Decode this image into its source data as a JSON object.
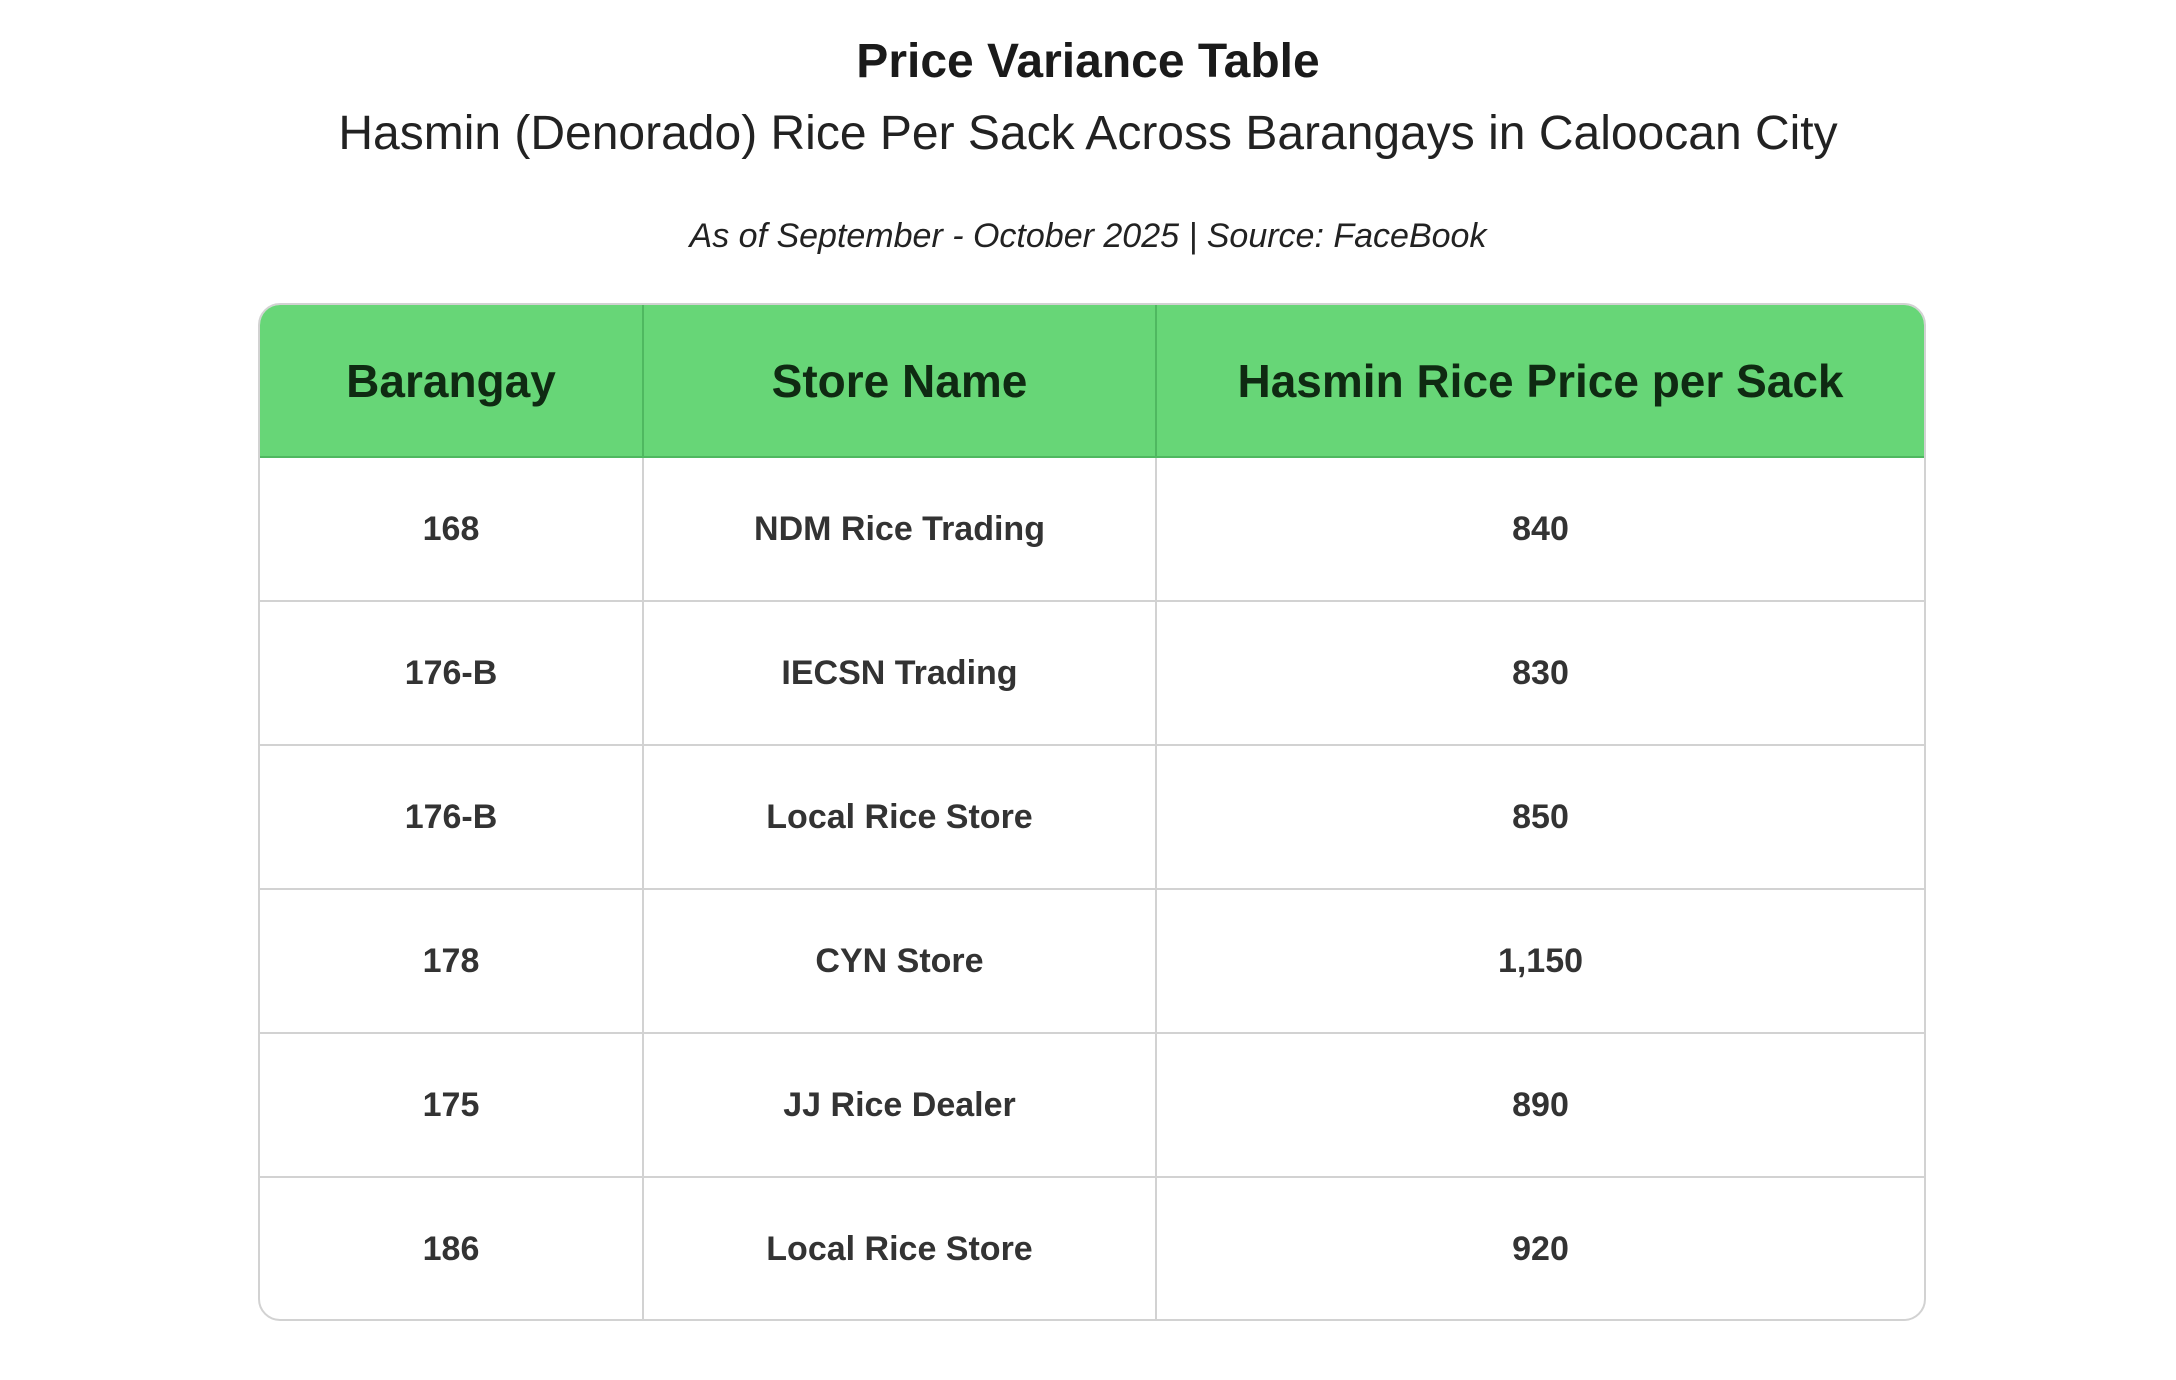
{
  "header": {
    "title": "Price Variance Table",
    "subtitle": "Hasmin (Denorado) Rice Per Sack Across Barangays in Caloocan City",
    "caption": "As of September - October 2025 | Source: FaceBook"
  },
  "colors": {
    "header_bg": "#67d677",
    "header_text": "#0f2a12",
    "border": "#d2d2d2"
  },
  "chart_data": {
    "type": "table",
    "title": "Price Variance Table",
    "subtitle": "Hasmin (Denorado) Rice Per Sack Across Barangays in Caloocan City",
    "columns": [
      "Barangay",
      "Store Name",
      "Hasmin Rice Price per Sack"
    ],
    "rows": [
      [
        "168",
        "NDM Rice Trading",
        "840"
      ],
      [
        "176-B",
        "IECSN Trading",
        "830"
      ],
      [
        "176-B",
        "Local Rice Store",
        "850"
      ],
      [
        "178",
        "CYN Store",
        "1,150"
      ],
      [
        "175",
        "JJ Rice Dealer",
        "890"
      ],
      [
        "186",
        "Local Rice Store",
        "920"
      ]
    ]
  }
}
